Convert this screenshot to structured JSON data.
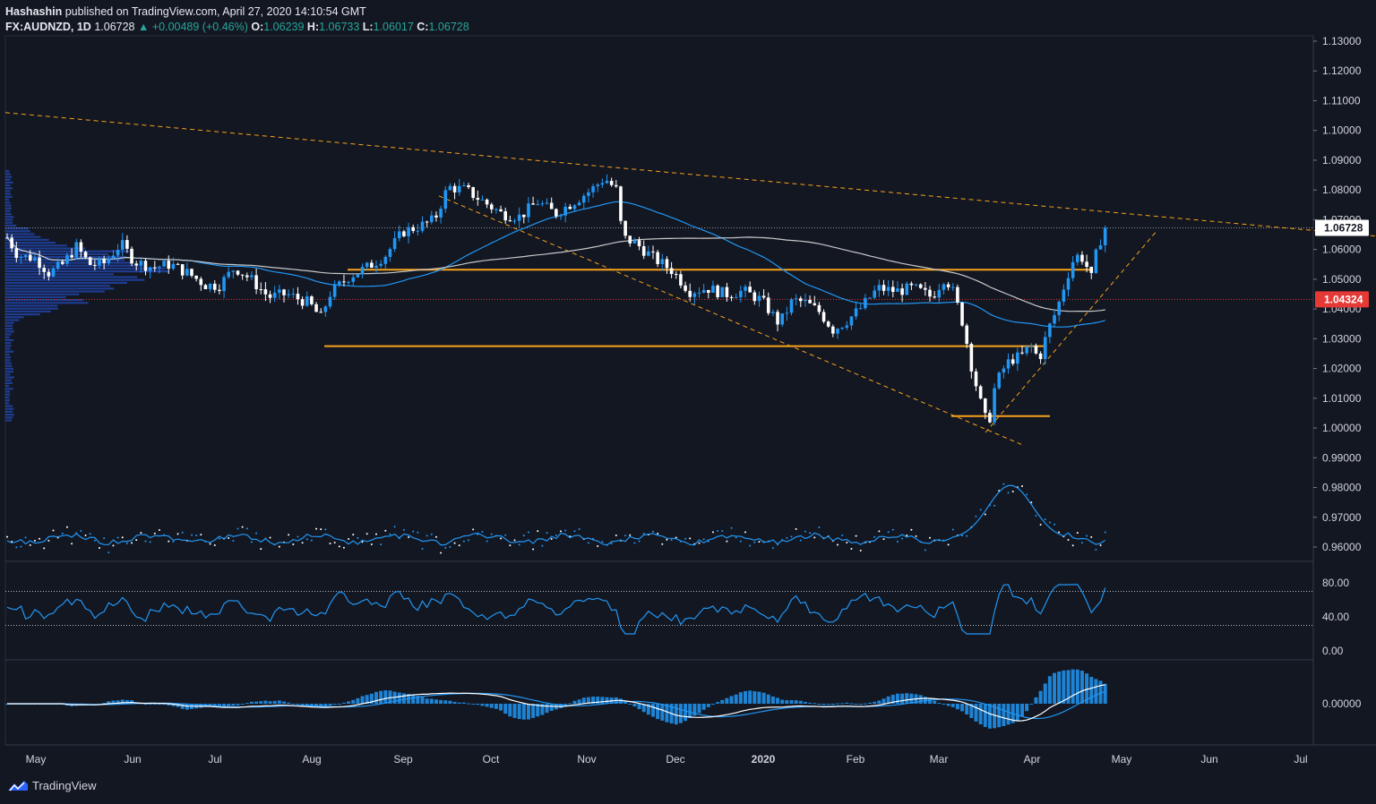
{
  "header": {
    "author": "Hashashin",
    "published": "published on TradingView.com, April 27, 2020 14:10:54 GMT",
    "symbol": "FX:AUDNZD, 1D",
    "last": "1.06728",
    "change": "▲ +0.00489 (+0.46%)",
    "o_label": "O:",
    "o": "1.06239",
    "h_label": "H:",
    "h": "1.06733",
    "l_label": "L:",
    "l": "1.06017",
    "c_label": "C:",
    "c": "1.06728"
  },
  "footer": {
    "brand": "TradingView"
  },
  "colors": {
    "background": "#131722",
    "up": "#2196f3",
    "down": "#ffffff",
    "orange": "#f7a21b",
    "blue_line": "#2196f3",
    "grid_text": "#d1d4dc",
    "red": "#e53935"
  },
  "chart_data": [
    {
      "type": "candlestick",
      "price_axis": [
        "1.13000",
        "1.12000",
        "1.11000",
        "1.10000",
        "1.09000",
        "1.08000",
        "1.07000",
        "1.06000",
        "1.05000",
        "1.04000",
        "1.03000",
        "1.02000",
        "1.01000",
        "1.00000",
        "0.99000",
        "0.98000",
        "0.97000",
        "0.96000"
      ],
      "price_labels": {
        "last": "1.06728",
        "red_line": "1.04324"
      },
      "time_axis": [
        "May",
        "Jun",
        "Jul",
        "Aug",
        "Sep",
        "Oct",
        "Nov",
        "Dec",
        "2020",
        "Feb",
        "Mar",
        "Apr",
        "May",
        "Jun",
        "Jul"
      ],
      "ylim": [
        0.955,
        1.132
      ],
      "waypoints": [
        [
          0,
          1.068
        ],
        [
          20,
          1.058
        ],
        [
          40,
          1.057
        ],
        [
          55,
          1.052
        ],
        [
          70,
          1.055
        ],
        [
          85,
          1.061
        ],
        [
          100,
          1.055
        ],
        [
          115,
          1.055
        ],
        [
          135,
          1.062
        ],
        [
          150,
          1.056
        ],
        [
          170,
          1.054
        ],
        [
          190,
          1.055
        ],
        [
          210,
          1.052
        ],
        [
          230,
          1.048
        ],
        [
          245,
          1.048
        ],
        [
          262,
          1.054
        ],
        [
          280,
          1.05
        ],
        [
          300,
          1.044
        ],
        [
          320,
          1.045
        ],
        [
          345,
          1.042
        ],
        [
          358,
          1.037
        ],
        [
          368,
          1.045
        ],
        [
          390,
          1.051
        ],
        [
          410,
          1.054
        ],
        [
          430,
          1.058
        ],
        [
          450,
          1.066
        ],
        [
          470,
          1.068
        ],
        [
          485,
          1.07
        ],
        [
          500,
          1.081
        ],
        [
          520,
          1.08
        ],
        [
          540,
          1.076
        ],
        [
          560,
          1.072
        ],
        [
          580,
          1.071
        ],
        [
          600,
          1.076
        ],
        [
          620,
          1.072
        ],
        [
          640,
          1.076
        ],
        [
          660,
          1.08
        ],
        [
          675,
          1.084
        ],
        [
          688,
          1.08
        ],
        [
          695,
          1.064
        ],
        [
          710,
          1.062
        ],
        [
          730,
          1.057
        ],
        [
          750,
          1.053
        ],
        [
          770,
          1.046
        ],
        [
          790,
          1.047
        ],
        [
          810,
          1.045
        ],
        [
          830,
          1.046
        ],
        [
          850,
          1.043
        ],
        [
          870,
          1.035
        ],
        [
          885,
          1.043
        ],
        [
          900,
          1.042
        ],
        [
          915,
          1.039
        ],
        [
          930,
          1.033
        ],
        [
          945,
          1.036
        ],
        [
          960,
          1.04
        ],
        [
          980,
          1.047
        ],
        [
          1000,
          1.046
        ],
        [
          1020,
          1.047
        ],
        [
          1040,
          1.044
        ],
        [
          1055,
          1.051
        ],
        [
          1065,
          1.045
        ],
        [
          1075,
          1.035
        ],
        [
          1085,
          1.02
        ],
        [
          1095,
          1.008
        ],
        [
          1103,
          1.0
        ],
        [
          1110,
          1.013
        ],
        [
          1118,
          1.019
        ],
        [
          1128,
          1.023
        ],
        [
          1140,
          1.024
        ],
        [
          1150,
          1.028
        ],
        [
          1160,
          1.023
        ],
        [
          1170,
          1.033
        ],
        [
          1180,
          1.04
        ],
        [
          1190,
          1.05
        ],
        [
          1200,
          1.058
        ],
        [
          1210,
          1.057
        ],
        [
          1218,
          1.05
        ],
        [
          1226,
          1.062
        ],
        [
          1236,
          1.0673
        ]
      ]
    },
    {
      "type": "line",
      "name": "",
      "axis": [
        "80.00",
        "40.00",
        "0.00"
      ],
      "ylim": [
        0,
        100
      ],
      "levels": [
        70,
        30
      ]
    },
    {
      "type": "histogram",
      "axis": [
        "0.00000"
      ]
    }
  ]
}
